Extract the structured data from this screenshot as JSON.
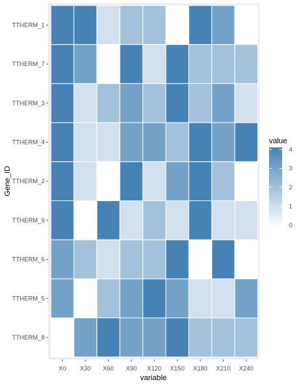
{
  "chart_data": {
    "type": "heatmap",
    "xlabel": "variable",
    "ylabel": "Gene_ID",
    "x_categories": [
      "X0",
      "X30",
      "X60",
      "X90",
      "X120",
      "X150",
      "X180",
      "X210",
      "X240"
    ],
    "y_categories": [
      "TTHERM_1",
      "TTHERM_7",
      "TTHERM_3",
      "TTHERM_4",
      "TTHERM_2",
      "TTHERM_9",
      "TTHERM_6",
      "TTHERM_5",
      "TTHERM_8"
    ],
    "values": [
      [
        4,
        4,
        1,
        2,
        2,
        0,
        4,
        3,
        0
      ],
      [
        4,
        3,
        0,
        4,
        1,
        4,
        2,
        2,
        2
      ],
      [
        4,
        1,
        2,
        3,
        2,
        4,
        2,
        3,
        1
      ],
      [
        4,
        1,
        1,
        3,
        3,
        2,
        4,
        3,
        4
      ],
      [
        4,
        1,
        0,
        4,
        1,
        3,
        4,
        2,
        0
      ],
      [
        4,
        0,
        4,
        1,
        2,
        1,
        4,
        1,
        1
      ],
      [
        3,
        2,
        1,
        2,
        2,
        4,
        0,
        4,
        0
      ],
      [
        3,
        0,
        2,
        3,
        4,
        3,
        1,
        1,
        3
      ],
      [
        0,
        3,
        4,
        3,
        3,
        4,
        2,
        2,
        2
      ]
    ],
    "color_low": "#ffffff",
    "color_high": "#4682b4",
    "panel_background": "#ebebeb",
    "legend": {
      "title": "value",
      "breaks": [
        0,
        1,
        2,
        3,
        4
      ],
      "labels": [
        "0",
        "1",
        "2",
        "3",
        "4"
      ],
      "range": [
        0,
        4
      ],
      "position": "right"
    }
  }
}
